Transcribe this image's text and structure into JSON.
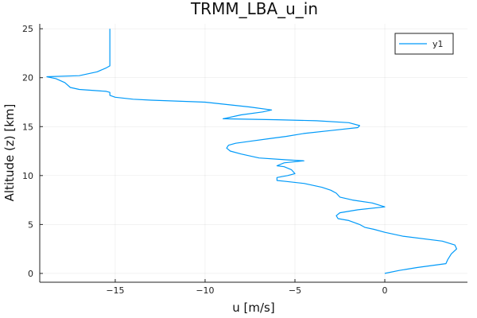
{
  "chart_data": {
    "type": "line",
    "title": "TRMM_LBA_u_in",
    "xlabel": "u [m/s]",
    "ylabel": "Altitude (z) [km]",
    "xlim": [
      -19.2,
      4.6
    ],
    "ylim": [
      -0.9,
      25.5
    ],
    "xticks": [
      -15,
      -10,
      -5,
      0
    ],
    "yticks": [
      0,
      5,
      10,
      15,
      20,
      25
    ],
    "grid": true,
    "legend_position": "top-right",
    "series": [
      {
        "name": "y1",
        "color": "#009af9",
        "points": [
          [
            0.0,
            0.0
          ],
          [
            0.8,
            0.3
          ],
          [
            1.8,
            0.6
          ],
          [
            3.4,
            1.0
          ],
          [
            3.5,
            1.4
          ],
          [
            3.7,
            2.0
          ],
          [
            4.0,
            2.5
          ],
          [
            3.9,
            2.9
          ],
          [
            3.2,
            3.3
          ],
          [
            1.0,
            3.8
          ],
          [
            0.0,
            4.2
          ],
          [
            -0.6,
            4.5
          ],
          [
            -1.1,
            4.7
          ],
          [
            -1.4,
            5.0
          ],
          [
            -2.0,
            5.4
          ],
          [
            -2.6,
            5.6
          ],
          [
            -2.7,
            5.9
          ],
          [
            -2.5,
            6.2
          ],
          [
            -1.5,
            6.5
          ],
          [
            0.0,
            6.8
          ],
          [
            -0.7,
            7.2
          ],
          [
            -1.8,
            7.5
          ],
          [
            -2.5,
            7.8
          ],
          [
            -2.7,
            8.2
          ],
          [
            -3.0,
            8.5
          ],
          [
            -3.5,
            8.8
          ],
          [
            -4.5,
            9.2
          ],
          [
            -5.5,
            9.4
          ],
          [
            -6.0,
            9.5
          ],
          [
            -6.0,
            9.8
          ],
          [
            -5.4,
            10.0
          ],
          [
            -5.0,
            10.2
          ],
          [
            -5.2,
            10.6
          ],
          [
            -5.6,
            10.9
          ],
          [
            -6.0,
            11.0
          ],
          [
            -5.6,
            11.3
          ],
          [
            -4.5,
            11.5
          ],
          [
            -5.4,
            11.6
          ],
          [
            -7.0,
            11.8
          ],
          [
            -7.5,
            12.0
          ],
          [
            -8.0,
            12.2
          ],
          [
            -8.6,
            12.5
          ],
          [
            -8.8,
            12.8
          ],
          [
            -8.7,
            13.1
          ],
          [
            -8.3,
            13.3
          ],
          [
            -7.5,
            13.5
          ],
          [
            -6.3,
            13.8
          ],
          [
            -5.5,
            14.0
          ],
          [
            -4.5,
            14.3
          ],
          [
            -3.0,
            14.6
          ],
          [
            -1.5,
            14.9
          ],
          [
            -1.4,
            15.1
          ],
          [
            -2.0,
            15.4
          ],
          [
            -3.8,
            15.6
          ],
          [
            -6.0,
            15.7
          ],
          [
            -9.0,
            15.8
          ],
          [
            -8.0,
            16.2
          ],
          [
            -6.8,
            16.5
          ],
          [
            -6.3,
            16.7
          ],
          [
            -7.5,
            17.0
          ],
          [
            -10.0,
            17.5
          ],
          [
            -13.0,
            17.7
          ],
          [
            -14.0,
            17.8
          ],
          [
            -15.0,
            18.0
          ],
          [
            -15.3,
            18.2
          ],
          [
            -15.3,
            18.5
          ],
          [
            -15.5,
            18.6
          ],
          [
            -17.0,
            18.8
          ],
          [
            -17.5,
            19.0
          ],
          [
            -17.8,
            19.5
          ],
          [
            -18.3,
            19.9
          ],
          [
            -18.8,
            20.1
          ],
          [
            -17.0,
            20.2
          ],
          [
            -16.0,
            20.6
          ],
          [
            -15.5,
            21.0
          ],
          [
            -15.3,
            21.2
          ],
          [
            -15.3,
            22.0
          ],
          [
            -15.3,
            23.0
          ],
          [
            -15.3,
            24.0
          ],
          [
            -15.3,
            25.0
          ]
        ]
      }
    ]
  }
}
